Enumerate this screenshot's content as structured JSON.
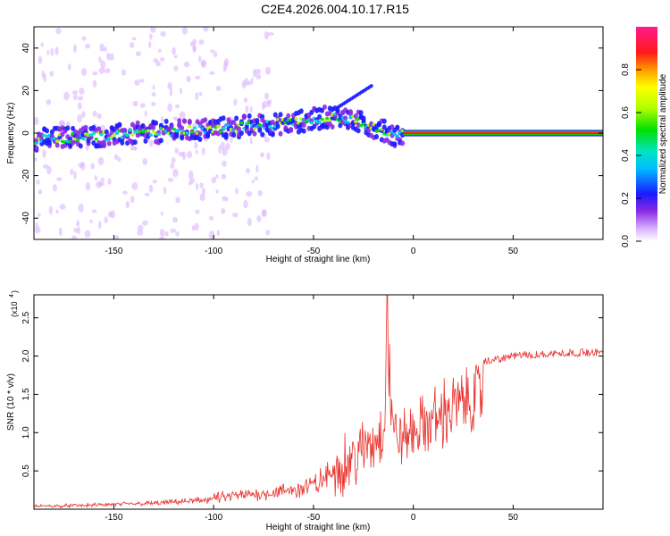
{
  "title": "C2E4.2026.004.10.17.R15",
  "colors": {
    "snr_line": "#e8322d",
    "background_top": "#ffffff",
    "axis": "#000000"
  },
  "chart_data": [
    {
      "type": "heatmap",
      "title": "C2E4.2026.004.10.17.R15",
      "xlabel": "Height of straight line (km)",
      "ylabel": "Frequency (Hz)",
      "xlim": [
        -190,
        95
      ],
      "ylim": [
        -50,
        50
      ],
      "x_ticks": [
        "-150",
        "-100",
        "-50",
        "0",
        "50"
      ],
      "x_tick_values": [
        -150,
        -100,
        -50,
        0,
        50
      ],
      "y_ticks": [
        "-40",
        "-20",
        "0",
        "20",
        "40"
      ],
      "y_tick_values": [
        -40,
        -20,
        0,
        20,
        40
      ],
      "colorbar": {
        "label": "Normalized spectral amplitude",
        "range": [
          0,
          1
        ],
        "ticks": [
          "0.0",
          "0.2",
          "0.4",
          "0.6",
          "0.8"
        ],
        "tick_values": [
          0.0,
          0.2,
          0.4,
          0.6,
          0.8
        ]
      },
      "ridge": {
        "description_points_x": [
          -190,
          -150,
          -100,
          -60,
          -40,
          -30,
          -20,
          -10,
          0,
          95
        ],
        "description_points_freq": [
          -3,
          -1,
          2,
          5,
          8,
          6,
          3,
          -1,
          0,
          0
        ]
      }
    },
    {
      "type": "line",
      "xlabel": "Height of straight line (km)",
      "ylabel": "SNR (10 * v/v)",
      "y_multiplier": "(x10",
      "y_multiplier_exp": "4",
      "y_multiplier_close": ")",
      "xlim": [
        -190,
        95
      ],
      "ylim": [
        0,
        2.8
      ],
      "x_ticks": [
        "-150",
        "-100",
        "-50",
        "0",
        "50"
      ],
      "x_tick_values": [
        -150,
        -100,
        -50,
        0,
        50
      ],
      "y_ticks": [
        "0.5",
        "1.0",
        "1.5",
        "2.0",
        "2.5"
      ],
      "y_tick_values": [
        0.5,
        1.0,
        1.5,
        2.0,
        2.5
      ],
      "series": [
        {
          "name": "SNR",
          "x": [
            -190,
            -170,
            -150,
            -130,
            -110,
            -100,
            -90,
            -80,
            -70,
            -60,
            -50,
            -45,
            -40,
            -35,
            -30,
            -25,
            -20,
            -15,
            -13,
            -10,
            -5,
            0,
            5,
            10,
            15,
            20,
            25,
            30,
            40,
            50,
            60,
            70,
            80,
            90,
            95
          ],
          "y": [
            0.05,
            0.06,
            0.08,
            0.1,
            0.14,
            0.18,
            0.22,
            0.25,
            0.28,
            0.33,
            0.4,
            0.5,
            0.65,
            0.75,
            0.85,
            1.0,
            1.1,
            1.35,
            2.8,
            1.25,
            1.2,
            1.3,
            1.4,
            1.5,
            1.6,
            1.7,
            1.8,
            1.88,
            1.95,
            2.0,
            2.02,
            2.03,
            2.04,
            2.05,
            2.05
          ]
        }
      ]
    }
  ]
}
